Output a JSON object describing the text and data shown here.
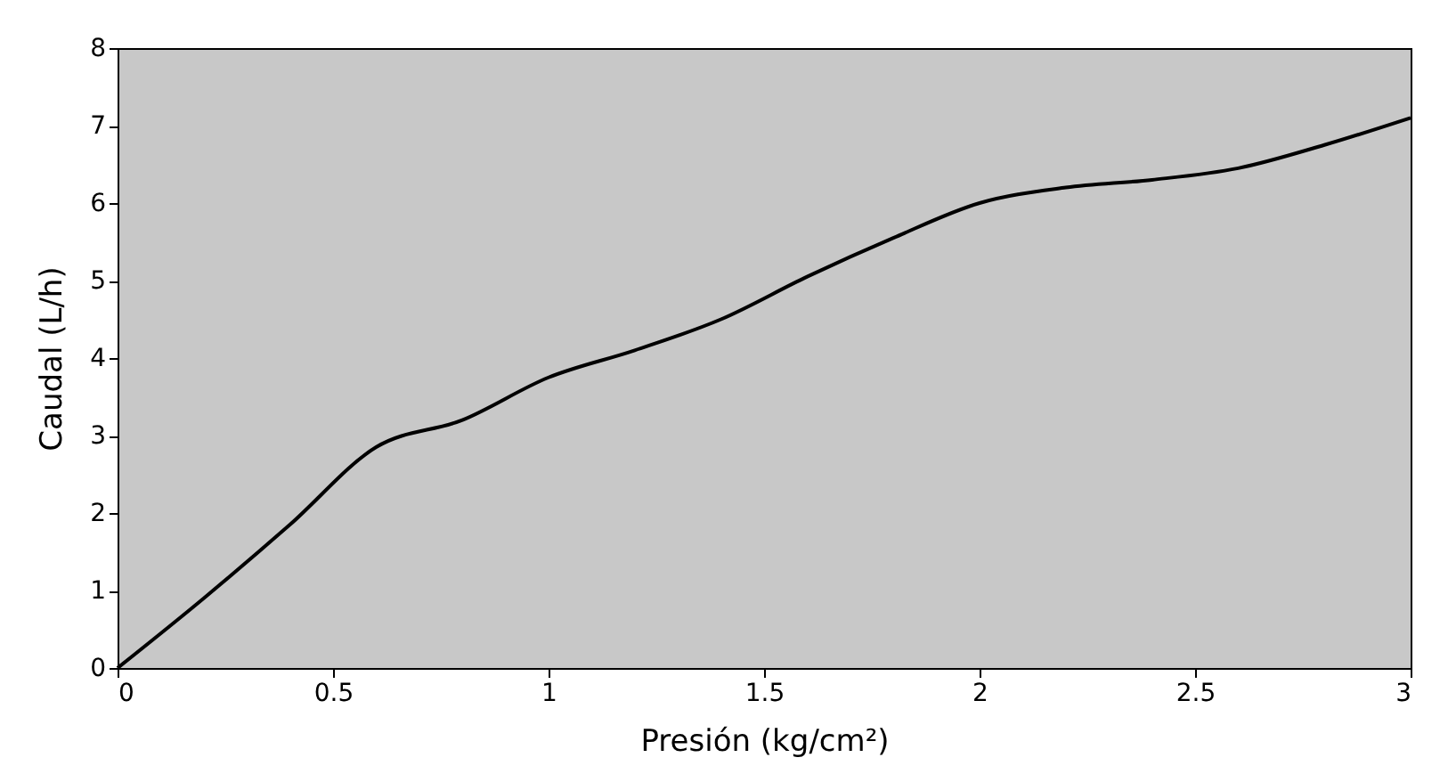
{
  "chart_data": {
    "type": "line",
    "xlabel": "Presión (kg/cm²)",
    "ylabel": "Caudal (L/h)",
    "x": [
      0,
      0.2,
      0.4,
      0.6,
      0.8,
      1.0,
      1.2,
      1.4,
      1.6,
      1.8,
      2.0,
      2.2,
      2.4,
      2.6,
      2.8,
      3.0
    ],
    "series": [
      {
        "color": "#000000",
        "values": [
          0,
          0.9,
          1.85,
          2.85,
          3.2,
          3.75,
          4.1,
          4.5,
          5.05,
          5.55,
          6.0,
          6.2,
          6.3,
          6.45,
          6.75,
          7.1
        ]
      }
    ],
    "xlim": [
      0,
      3
    ],
    "xticks": [
      0,
      0.5,
      1,
      1.5,
      2,
      2.5,
      3
    ],
    "ylim": [
      0,
      8
    ],
    "yticks": [
      0,
      1,
      2,
      3,
      4,
      5,
      6,
      7,
      8
    ],
    "grid": false,
    "marker": "none",
    "line_style": "solid"
  }
}
